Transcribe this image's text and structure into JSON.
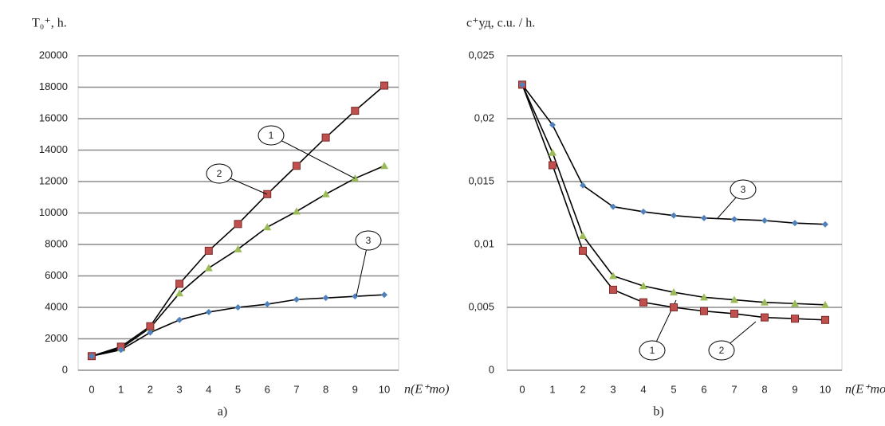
{
  "chart_data": [
    {
      "type": "line",
      "ylabel": "T₀⁺, h.",
      "xlabel": "n(E⁺то)",
      "caption": "a)",
      "x": [
        0,
        1,
        2,
        3,
        4,
        5,
        6,
        7,
        8,
        9,
        10
      ],
      "xlim": [
        0,
        10
      ],
      "xticks": [
        0,
        1,
        2,
        3,
        4,
        5,
        6,
        7,
        8,
        9,
        10
      ],
      "ylim": [
        0,
        20000
      ],
      "yticks": [
        0,
        2000,
        4000,
        6000,
        8000,
        10000,
        12000,
        14000,
        16000,
        18000,
        20000
      ],
      "grid": true,
      "line_color": "#000000",
      "series": [
        {
          "name": "1",
          "color": "#9bbb59",
          "marker": "triangle",
          "values": [
            900,
            1400,
            2700,
            4900,
            6500,
            7700,
            9100,
            10100,
            11200,
            12200,
            13000
          ]
        },
        {
          "name": "2",
          "color": "#c0504d",
          "marker": "square",
          "values": [
            900,
            1500,
            2800,
            5500,
            7600,
            9300,
            11200,
            13000,
            14800,
            16500,
            18100
          ]
        },
        {
          "name": "3",
          "color": "#4f81bd",
          "marker": "diamond",
          "values": [
            900,
            1300,
            2400,
            3200,
            3700,
            4000,
            4200,
            4500,
            4600,
            4700,
            4800
          ]
        }
      ]
    },
    {
      "type": "line",
      "ylabel": "c⁺уд, c.u. / h.",
      "xlabel": "n(E⁺то)",
      "caption": "b)",
      "x": [
        0,
        1,
        2,
        3,
        4,
        5,
        6,
        7,
        8,
        9,
        10
      ],
      "xlim": [
        0,
        10
      ],
      "xticks": [
        0,
        1,
        2,
        3,
        4,
        5,
        6,
        7,
        8,
        9,
        10
      ],
      "ylim": [
        0,
        0.025
      ],
      "yticks": [
        0,
        {
          "value": 0.005,
          "label": "0,005"
        },
        {
          "value": 0.01,
          "label": "0,01"
        },
        {
          "value": 0.015,
          "label": "0,015"
        },
        {
          "value": 0.02,
          "label": "0,02"
        },
        {
          "value": 0.025,
          "label": "0,025"
        }
      ],
      "grid": true,
      "line_color": "#000000",
      "series": [
        {
          "name": "1",
          "color": "#9bbb59",
          "marker": "triangle",
          "values": [
            0.0227,
            0.0173,
            0.0107,
            0.0075,
            0.0067,
            0.0062,
            0.0058,
            0.0056,
            0.0054,
            0.0053,
            0.0052
          ]
        },
        {
          "name": "2",
          "color": "#c0504d",
          "marker": "square",
          "values": [
            0.0227,
            0.0163,
            0.0095,
            0.0064,
            0.0054,
            0.005,
            0.0047,
            0.0045,
            0.0042,
            0.0041,
            0.004
          ]
        },
        {
          "name": "3",
          "color": "#4f81bd",
          "marker": "diamond",
          "values": [
            0.0227,
            0.0195,
            0.0147,
            0.013,
            0.0126,
            0.0123,
            0.0121,
            0.012,
            0.0119,
            0.0117,
            0.0116
          ]
        }
      ]
    }
  ]
}
